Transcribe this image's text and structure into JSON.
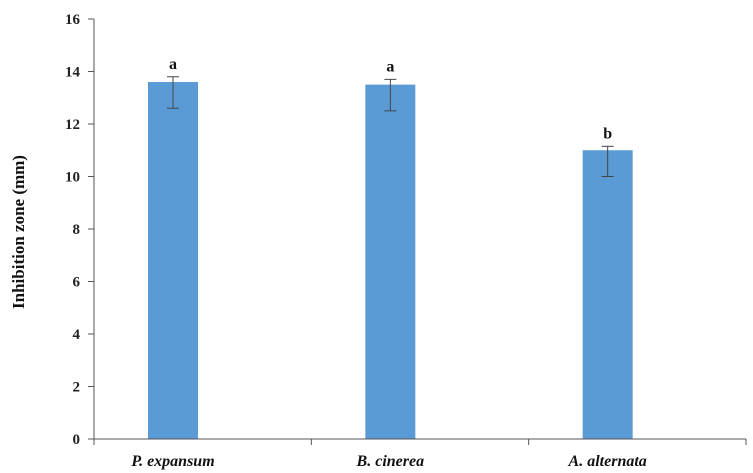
{
  "chart_data": {
    "type": "bar",
    "title": "",
    "xlabel": "",
    "ylabel": "Inhibition  zone (mm)",
    "ylim": [
      0,
      16
    ],
    "yticks": [
      0,
      2,
      4,
      6,
      8,
      10,
      12,
      14,
      16
    ],
    "grid": false,
    "categories": [
      "P. expansum",
      "B. cinerea",
      "A. alternata"
    ],
    "values": [
      13.6,
      13.5,
      11.0
    ],
    "error_high": [
      0.2,
      0.2,
      0.15
    ],
    "error_low": [
      1.0,
      1.0,
      1.0
    ],
    "significance": [
      "a",
      "a",
      "b"
    ],
    "bar_color": "#5b9bd5",
    "axis_color": "#555555",
    "errorbar_color": "#444444"
  }
}
